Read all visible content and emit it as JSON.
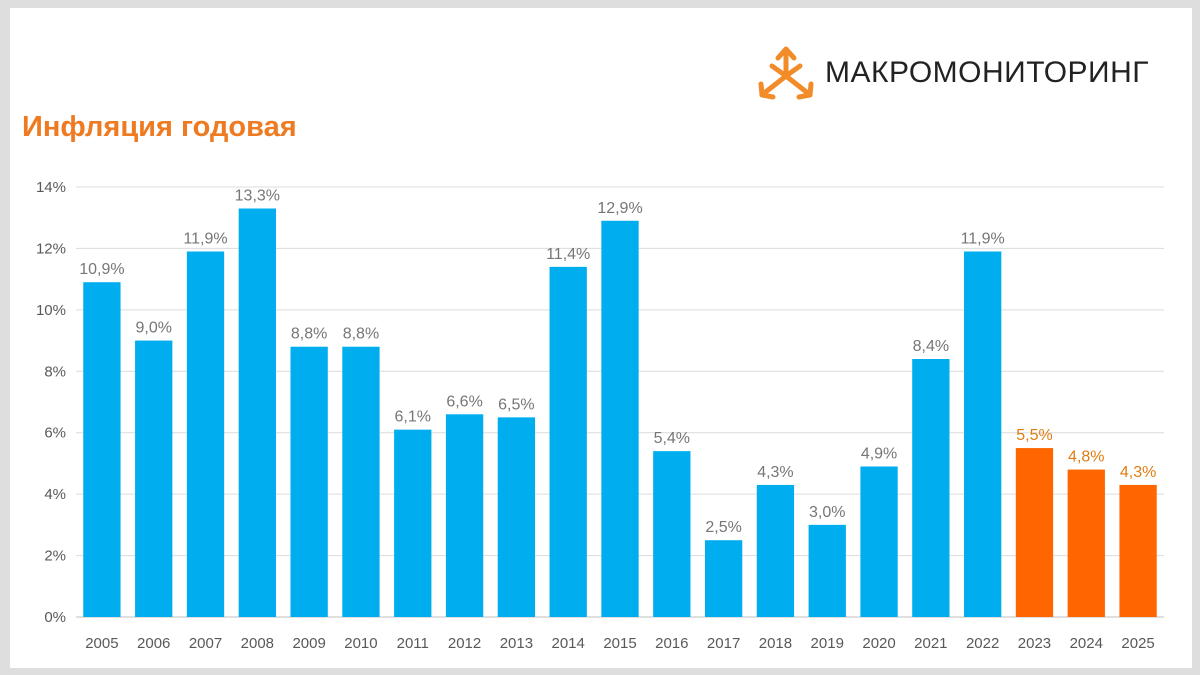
{
  "logo": {
    "text": "МАКРОМОНИТОРИНГ",
    "icon": "tri-arrow-logo-icon",
    "color": "#f28c28"
  },
  "colors": {
    "actual": "#00aeef",
    "forecast": "#ff6600",
    "title": "#ee7a22",
    "label_actual": "#767676",
    "label_forecast": "#e07d10",
    "grid": "#dcdcdc",
    "axis_text": "#595959"
  },
  "chart_data": {
    "type": "bar",
    "title": "Инфляция годовая",
    "xlabel": "",
    "ylabel": "",
    "categories": [
      "2005",
      "2006",
      "2007",
      "2008",
      "2009",
      "2010",
      "2011",
      "2012",
      "2013",
      "2014",
      "2015",
      "2016",
      "2017",
      "2018",
      "2019",
      "2020",
      "2021",
      "2022",
      "2023",
      "2024",
      "2025"
    ],
    "values": [
      10.9,
      9.0,
      11.9,
      13.3,
      8.8,
      8.8,
      6.1,
      6.6,
      6.5,
      11.4,
      12.9,
      5.4,
      2.5,
      4.3,
      3.0,
      4.9,
      8.4,
      11.9,
      5.5,
      4.8,
      4.3
    ],
    "data_labels": [
      "10,9%",
      "9,0%",
      "11,9%",
      "13,3%",
      "8,8%",
      "8,8%",
      "6,1%",
      "6,6%",
      "6,5%",
      "11,4%",
      "12,9%",
      "5,4%",
      "2,5%",
      "4,3%",
      "3,0%",
      "4,9%",
      "8,4%",
      "11,9%",
      "5,5%",
      "4,8%",
      "4,3%"
    ],
    "forecast_from": "2023",
    "ylim": [
      0,
      14
    ],
    "yticks": [
      0,
      2,
      4,
      6,
      8,
      10,
      12,
      14
    ],
    "ytick_labels": [
      "0%",
      "2%",
      "4%",
      "6%",
      "8%",
      "10%",
      "12%",
      "14%"
    ],
    "grid": true,
    "legend": false
  }
}
